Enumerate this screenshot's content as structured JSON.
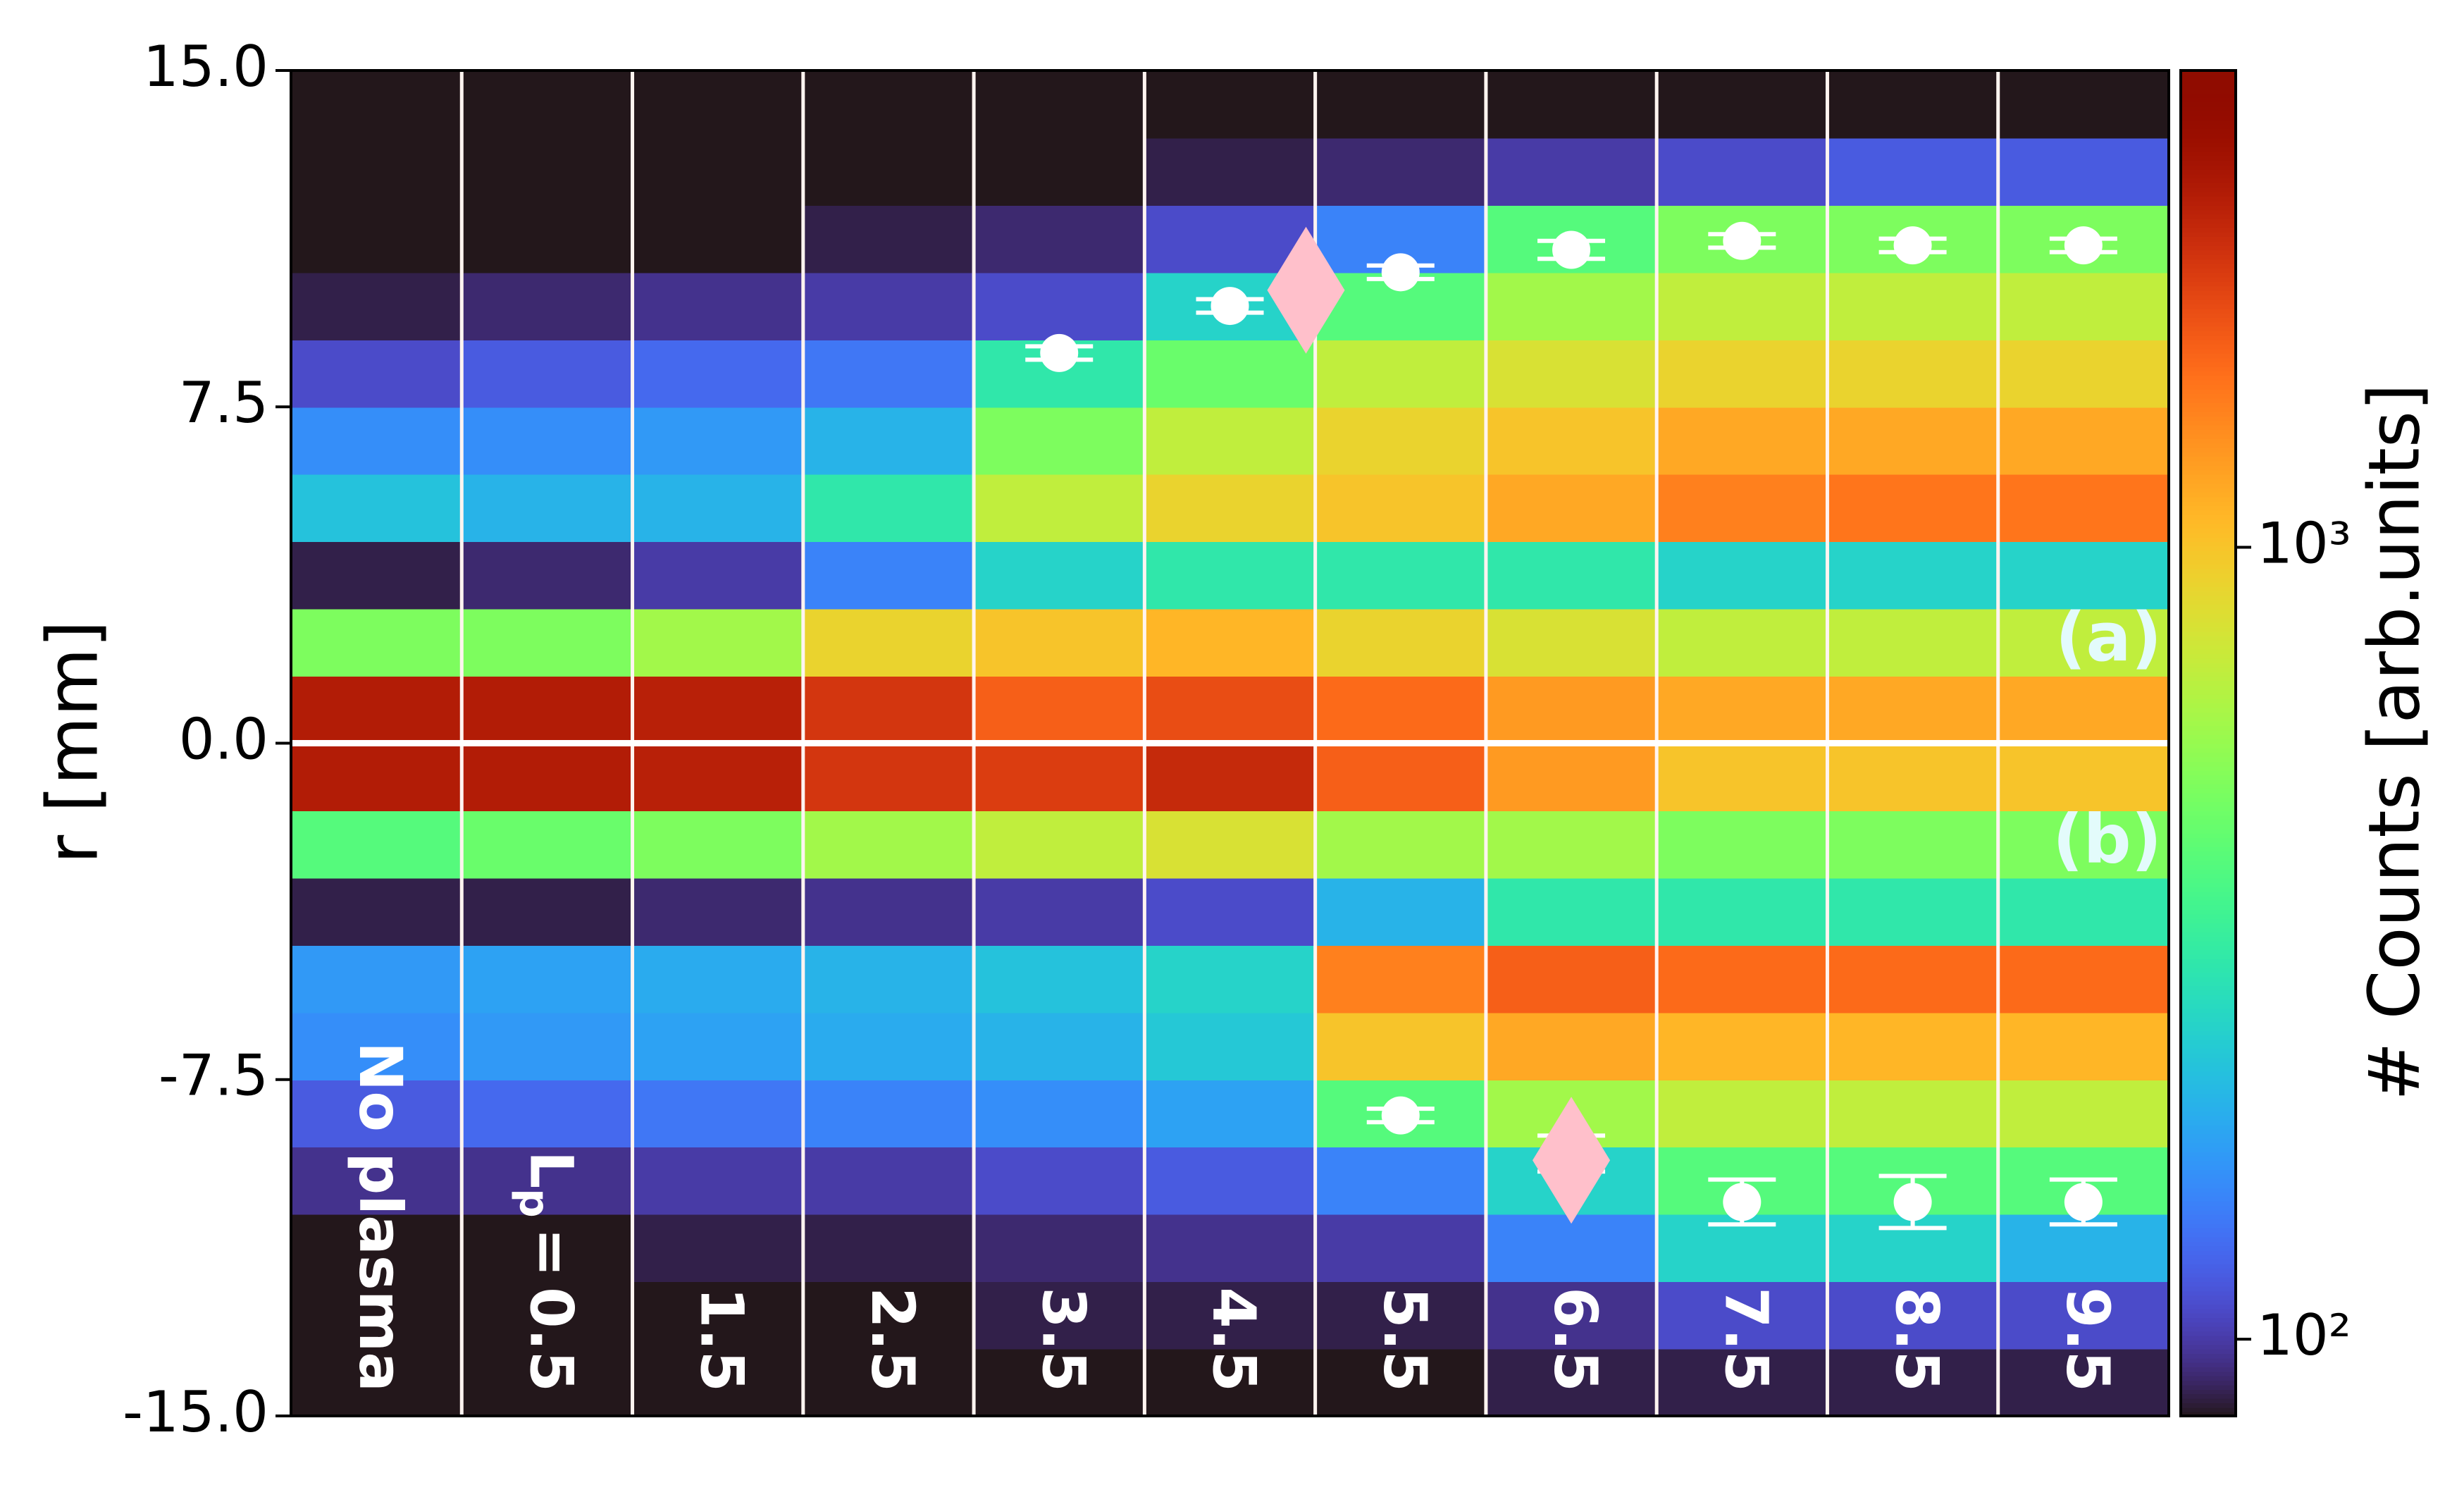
{
  "chart_data": {
    "type": "heatmap",
    "ylabel": "r [mm]",
    "ylim": [
      -15,
      15
    ],
    "yticks": [
      {
        "value": 15,
        "label": "15.0"
      },
      7.5,
      {
        "value": 0,
        "label": "0.0"
      },
      -7.5,
      {
        "value": -15,
        "label": "-15.0"
      }
    ],
    "categories": [
      "No plasma",
      "0.5",
      "1.5",
      "2.5",
      "3.5",
      "4.5",
      "5.5",
      "6.5",
      "7.5",
      "8.5",
      "9.5"
    ],
    "first_label": {
      "symbol": "L",
      "subscript": "p",
      "relation": "="
    },
    "r_bins": [
      -15,
      -13.5,
      -12,
      -10.5,
      -9,
      -7.5,
      -6,
      -4.5,
      -3,
      -1.5,
      0,
      1.5,
      3,
      4.5,
      6,
      7.5,
      9,
      10.5,
      12,
      13.5,
      15
    ],
    "counts": [
      [
        80,
        80,
        80,
        95,
        120,
        160,
        170,
        85,
        400,
        2800,
        2800,
        500,
        85,
        220,
        160,
        110,
        85,
        80,
        80,
        80
      ],
      [
        80,
        80,
        80,
        95,
        130,
        170,
        180,
        85,
        450,
        2800,
        2800,
        500,
        90,
        200,
        160,
        120,
        90,
        80,
        80,
        80
      ],
      [
        80,
        80,
        85,
        100,
        140,
        180,
        190,
        90,
        500,
        2700,
        2700,
        600,
        100,
        200,
        170,
        130,
        95,
        80,
        80,
        80
      ],
      [
        80,
        80,
        85,
        100,
        150,
        190,
        200,
        95,
        600,
        2300,
        2300,
        900,
        150,
        300,
        200,
        140,
        100,
        85,
        80,
        80
      ],
      [
        80,
        85,
        90,
        110,
        160,
        200,
        220,
        100,
        700,
        2200,
        1800,
        1000,
        250,
        700,
        500,
        300,
        110,
        90,
        80,
        80
      ],
      [
        80,
        85,
        95,
        120,
        180,
        230,
        250,
        110,
        800,
        2500,
        2000,
        1100,
        300,
        900,
        700,
        450,
        250,
        110,
        85,
        80
      ],
      [
        80,
        85,
        100,
        150,
        400,
        1000,
        1500,
        200,
        600,
        1800,
        1700,
        900,
        300,
        1000,
        900,
        700,
        400,
        150,
        90,
        80
      ],
      [
        85,
        95,
        150,
        250,
        600,
        1200,
        1800,
        300,
        600,
        1300,
        1300,
        800,
        300,
        1200,
        1000,
        800,
        600,
        400,
        100,
        80
      ],
      [
        85,
        110,
        250,
        400,
        700,
        1100,
        1700,
        300,
        500,
        1000,
        1200,
        700,
        250,
        1500,
        1200,
        900,
        700,
        500,
        110,
        80
      ],
      [
        85,
        110,
        250,
        400,
        700,
        1100,
        1700,
        300,
        500,
        1000,
        1200,
        700,
        250,
        1600,
        1200,
        900,
        700,
        500,
        120,
        80
      ],
      [
        85,
        110,
        200,
        400,
        700,
        1100,
        1700,
        300,
        500,
        1000,
        1200,
        700,
        250,
        1600,
        1200,
        900,
        700,
        500,
        120,
        80
      ]
    ],
    "colormap": "turbo",
    "zscale": "log",
    "zlim": [
      80,
      4000
    ],
    "zlabel": "# Counts [arb.units]",
    "zticks": [
      {
        "value": 100,
        "label": "10²"
      },
      {
        "value": 1000,
        "label": "10³"
      }
    ],
    "divider_r": 0,
    "panel_labels": [
      "(a)",
      "(b)"
    ],
    "markers": {
      "color": "#ffffff",
      "upper": {
        "values": [
          null,
          null,
          null,
          null,
          8.7,
          9.75,
          10.5,
          11.0,
          11.2,
          11.1,
          11.1
        ],
        "errors": [
          null,
          null,
          null,
          null,
          0.15,
          0.15,
          0.15,
          0.2,
          0.15,
          0.15,
          0.15
        ]
      },
      "lower": {
        "values": [
          null,
          null,
          null,
          null,
          null,
          null,
          -8.3,
          -9.15,
          -10.23,
          -10.23,
          -10.23
        ],
        "errors": [
          null,
          null,
          null,
          null,
          null,
          null,
          0.15,
          0.4,
          0.5,
          0.58,
          0.5
        ]
      }
    },
    "diamonds": {
      "color": "#ffc0cb",
      "upper": [
        null,
        null,
        null,
        null,
        null,
        10.1,
        null,
        null,
        null,
        null,
        null
      ],
      "lower": [
        null,
        null,
        null,
        null,
        null,
        null,
        null,
        -9.3,
        null,
        null,
        null
      ]
    }
  }
}
